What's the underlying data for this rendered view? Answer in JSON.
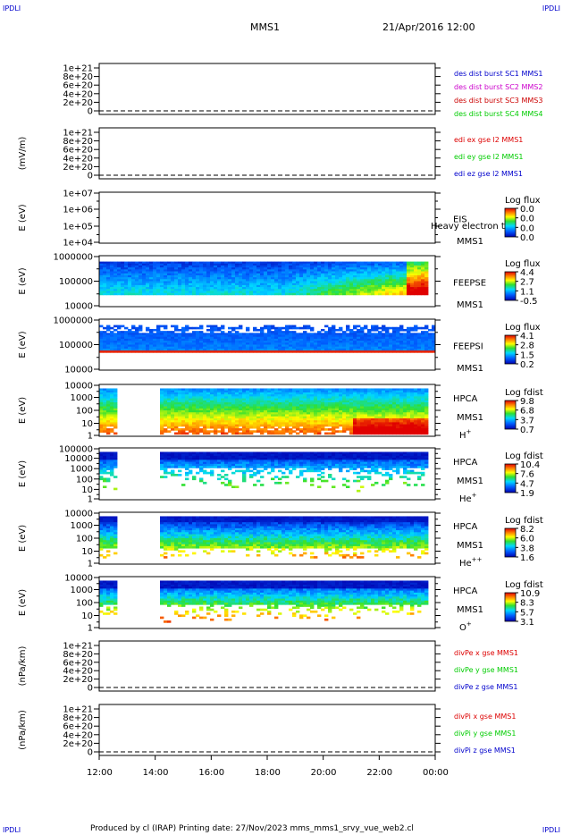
{
  "header": {
    "corner_left_top": "IPDLI",
    "corner_right_top": "IPDLI",
    "corner_left_bottom": "IPDLI",
    "corner_right_bottom": "IPDLI",
    "spacecraft": "MMS1",
    "datetime": "21/Apr/2016 12:00"
  },
  "footer": {
    "text": "Produced by cl (IRAP)    Printing date: 27/Nov/2023    mms_mms1_srvy_vue_web2.cl"
  },
  "time_axis": {
    "ticks": [
      "12:00",
      "14:00",
      "16:00",
      "18:00",
      "20:00",
      "22:00",
      "00:00"
    ]
  },
  "colors": {
    "mms1": "#0000cc",
    "mms2": "#cc00cc",
    "mms3": "#cc0000",
    "mms4": "#00cc00",
    "x": "#dd0000",
    "y": "#00cc00",
    "z": "#0000cc",
    "dashed": "#000000"
  },
  "panels": [
    {
      "id": "desdist",
      "ylabel": "",
      "ticks": [
        "1e+21",
        "8e+20",
        "6e+20",
        "4e+20",
        "2e+20",
        "0"
      ],
      "legend": [
        {
          "text": "des dist burst SC1 MMS1",
          "color": "#0000cc"
        },
        {
          "text": "des dist burst SC2 MMS2",
          "color": "#cc00cc"
        },
        {
          "text": "des dist burst SC3 MMS3",
          "color": "#cc0000"
        },
        {
          "text": "des dist burst SC4 MMS4",
          "color": "#00cc00"
        }
      ]
    },
    {
      "id": "edi",
      "ylabel": "(mV/m)",
      "ticks": [
        "1e+21",
        "8e+20",
        "6e+20",
        "4e+20",
        "2e+20",
        "0"
      ],
      "legend": [
        {
          "text": "edi ex gse l2 MMS1",
          "color": "#dd0000"
        },
        {
          "text": "edi ey gse l2 MMS1",
          "color": "#00cc00"
        },
        {
          "text": "edi ez gse l2 MMS1",
          "color": "#0000cc"
        }
      ]
    },
    {
      "id": "eis",
      "ylabel": "E (eV)",
      "ticks": [
        "1e+07",
        "1e+06",
        "1e+05",
        "1e+04"
      ],
      "instrument": "EIS",
      "overlay_text": "Heavy electron to",
      "species": "MMS1",
      "colorbar": {
        "title": "Log flux",
        "values": [
          "0.0",
          "0.0",
          "0.0",
          "0.0"
        ]
      }
    },
    {
      "id": "feepse",
      "ylabel": "E (eV)",
      "ticks": [
        "1000000",
        "100000",
        "10000"
      ],
      "instrument": "FEEPSE",
      "species": "MMS1",
      "colorbar": {
        "title": "Log flux",
        "values": [
          "4.4",
          "2.7",
          "1.1",
          "-0.5"
        ]
      }
    },
    {
      "id": "feepsi",
      "ylabel": "E (eV)",
      "ticks": [
        "1000000",
        "100000",
        "10000"
      ],
      "instrument": "FEEPSI",
      "species": "MMS1",
      "colorbar": {
        "title": "Log flux",
        "values": [
          "4.1",
          "2.8",
          "1.5",
          "0.2"
        ]
      }
    },
    {
      "id": "hpca_h",
      "ylabel": "E (eV)",
      "ticks": [
        "10000",
        "1000",
        "100",
        "10",
        "1"
      ],
      "instrument": "HPCA",
      "species": "MMS1",
      "ion": "H",
      "ion_sup": "+",
      "colorbar": {
        "title": "Log fdist",
        "values": [
          "9.8",
          "6.8",
          "3.7",
          "0.7"
        ]
      }
    },
    {
      "id": "hpca_he",
      "ylabel": "E (eV)",
      "ticks": [
        "100000",
        "10000",
        "1000",
        "100",
        "10",
        "1"
      ],
      "instrument": "HPCA",
      "species": "MMS1",
      "ion": "He",
      "ion_sup": "+",
      "colorbar": {
        "title": "Log fdist",
        "values": [
          "10.4",
          "7.6",
          "4.7",
          "1.9"
        ]
      }
    },
    {
      "id": "hpca_hepp",
      "ylabel": "E (eV)",
      "ticks": [
        "10000",
        "1000",
        "100",
        "10",
        "1"
      ],
      "instrument": "HPCA",
      "species": "MMS1",
      "ion": "He",
      "ion_sup": "++",
      "colorbar": {
        "title": "Log fdist",
        "values": [
          "8.2",
          "6.0",
          "3.8",
          "1.6"
        ]
      }
    },
    {
      "id": "hpca_o",
      "ylabel": "E (eV)",
      "ticks": [
        "10000",
        "1000",
        "100",
        "10",
        "1"
      ],
      "instrument": "HPCA",
      "species": "MMS1",
      "ion": "O",
      "ion_sup": "+",
      "colorbar": {
        "title": "Log fdist",
        "values": [
          "10.9",
          "8.3",
          "5.7",
          "3.1"
        ]
      }
    },
    {
      "id": "divpe",
      "ylabel": "(nPa/km)",
      "ticks": [
        "1e+21",
        "8e+20",
        "6e+20",
        "4e+20",
        "2e+20",
        "0"
      ],
      "legend": [
        {
          "text": "divPe x gse MMS1",
          "color": "#dd0000"
        },
        {
          "text": "divPe y gse MMS1",
          "color": "#00cc00"
        },
        {
          "text": "divPe z gse MMS1",
          "color": "#0000cc"
        }
      ]
    },
    {
      "id": "divpi",
      "ylabel": "(nPa/km)",
      "ticks": [
        "1e+21",
        "8e+20",
        "6e+20",
        "4e+20",
        "2e+20",
        "0"
      ],
      "legend": [
        {
          "text": "divPi x gse MMS1",
          "color": "#dd0000"
        },
        {
          "text": "divPi y gse MMS1",
          "color": "#00cc00"
        },
        {
          "text": "divPi z gse MMS1",
          "color": "#0000cc"
        }
      ]
    }
  ],
  "chart_data": {
    "type": "heatmap",
    "title": "MMS1 21/Apr/2016 12:00",
    "x_ticks": [
      "12:00",
      "14:00",
      "16:00",
      "18:00",
      "20:00",
      "22:00",
      "00:00"
    ],
    "panels": [
      "des dist burst",
      "edi e gse l2",
      "EIS",
      "FEEPSE",
      "FEEPSI",
      "HPCA H+",
      "HPCA He+",
      "HPCA He++",
      "HPCA O+",
      "divPe gse",
      "divPi gse"
    ]
  }
}
